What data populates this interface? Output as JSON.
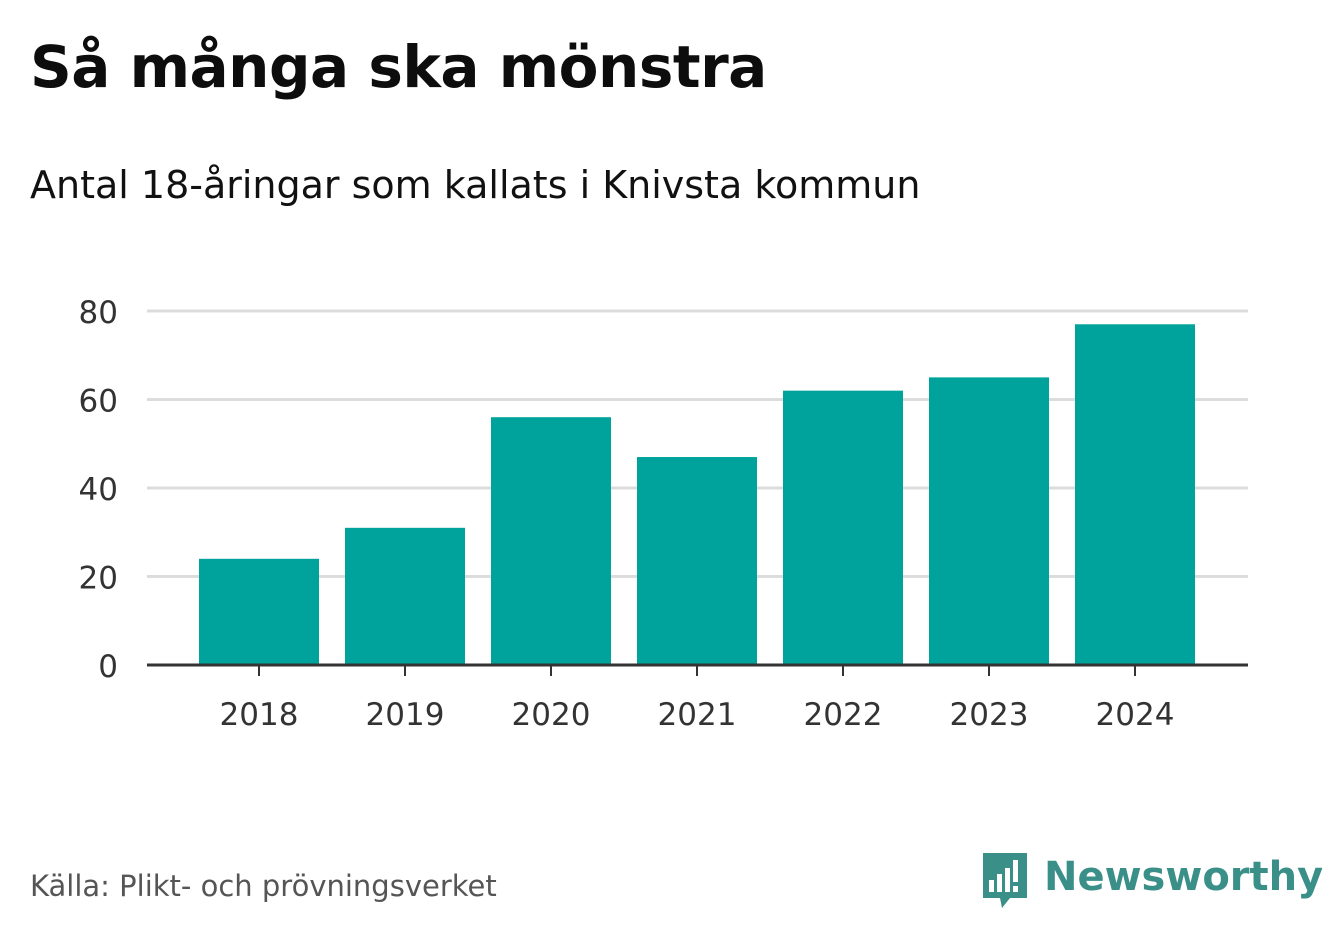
{
  "chart_data": {
    "type": "bar",
    "title": "Så många ska mönstra",
    "subtitle": "Antal 18-åringar som kallats i Knivsta kommun",
    "categories": [
      "2018",
      "2019",
      "2020",
      "2021",
      "2022",
      "2023",
      "2024"
    ],
    "values": [
      24,
      31,
      56,
      47,
      62,
      65,
      77
    ],
    "xlabel": "",
    "ylabel": "",
    "ylim": [
      0,
      80
    ],
    "yticks": [
      "0",
      "20",
      "40",
      "60",
      "80"
    ],
    "grid": true,
    "bar_color": "#00a39b",
    "source": "Källa: Plikt- och prövningsverket"
  },
  "brand": {
    "name": "Newsworthy",
    "color": "#3a8f88"
  }
}
